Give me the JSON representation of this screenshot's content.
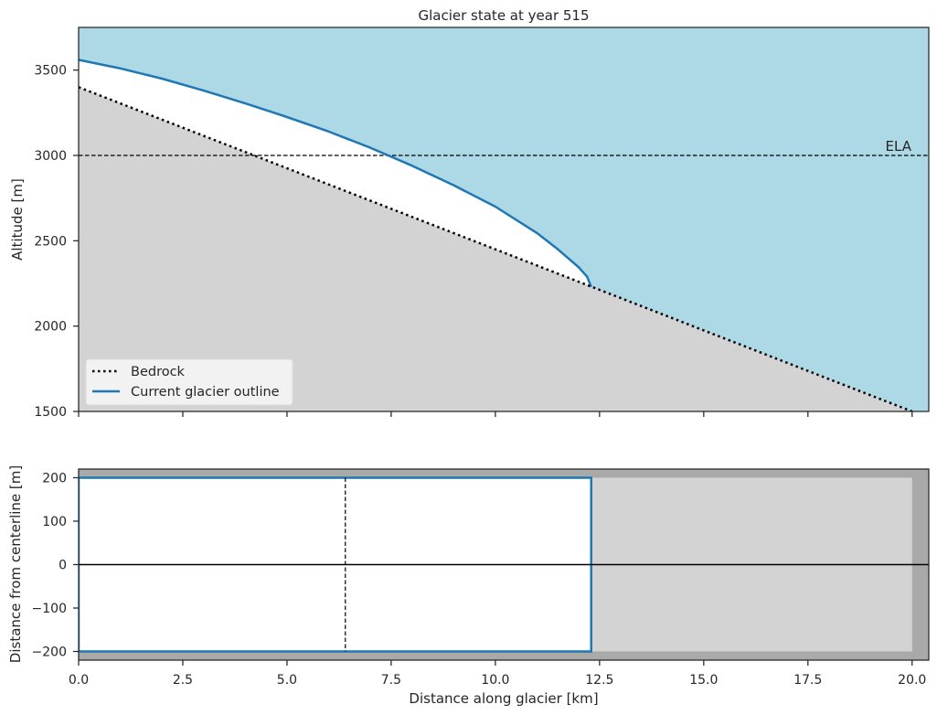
{
  "chart_data": [
    {
      "type": "line",
      "title": "Glacier state at year 515",
      "xlabel": "",
      "ylabel": "Altitude [m]",
      "xlim": [
        0,
        20.4
      ],
      "ylim": [
        1500,
        3750
      ],
      "xticks": [
        0,
        2.5,
        5,
        7.5,
        10,
        12.5,
        15,
        17.5,
        20
      ],
      "yticks": [
        1500,
        2000,
        2500,
        3000,
        3500
      ],
      "ytick_labels": [
        "1500",
        "2000",
        "2500",
        "3000",
        "3500"
      ],
      "grid": false,
      "background_color": "#add8e6",
      "bedrock_fill_color": "#d3d3d3",
      "ice_fill_color": "#ffffff",
      "series": [
        {
          "name": "Bedrock",
          "style": "dotted",
          "color": "#000000",
          "x": [
            0,
            20
          ],
          "y": [
            3400,
            1500
          ]
        },
        {
          "name": "Current glacier outline",
          "style": "solid",
          "color": "#1f77b4",
          "x": [
            0,
            1,
            2,
            3,
            4,
            5,
            6,
            7,
            8,
            9,
            10,
            11,
            11.5,
            12,
            12.2,
            12.3
          ],
          "y": [
            3560,
            3510,
            3450,
            3380,
            3305,
            3225,
            3140,
            3045,
            2940,
            2825,
            2700,
            2545,
            2450,
            2345,
            2290,
            2230
          ]
        }
      ],
      "annotations": [
        {
          "text": "ELA",
          "y": 3000,
          "line_style": "dashed"
        }
      ],
      "legend": {
        "placement": "lower-left",
        "entries": [
          "Bedrock",
          "Current glacier outline"
        ]
      }
    },
    {
      "type": "area",
      "title": "",
      "xlabel": "Distance along glacier [km]",
      "ylabel": "Distance from centerline [m]",
      "xlim": [
        0,
        20.4
      ],
      "ylim": [
        -220,
        220
      ],
      "xticks": [
        0,
        2.5,
        5,
        7.5,
        10,
        12.5,
        15,
        17.5,
        20
      ],
      "xtick_labels": [
        "0.0",
        "2.5",
        "5.0",
        "7.5",
        "10.0",
        "12.5",
        "15.0",
        "17.5",
        "20.0"
      ],
      "yticks": [
        -200,
        -100,
        0,
        100,
        200
      ],
      "ytick_labels": [
        "−200",
        "−100",
        "0",
        "100",
        "200"
      ],
      "grid": false,
      "background_color": "#a9a9a9",
      "valley_fill_color": "#d3d3d3",
      "valley": {
        "x": [
          0,
          20
        ],
        "y": [
          -200,
          200
        ]
      },
      "glacier": {
        "x": [
          0,
          12.3
        ],
        "y": [
          -200,
          200
        ],
        "color": "#1f77b4",
        "fill": "#ffffff"
      },
      "ela_x": 6.4,
      "centerline_y": 0
    }
  ]
}
